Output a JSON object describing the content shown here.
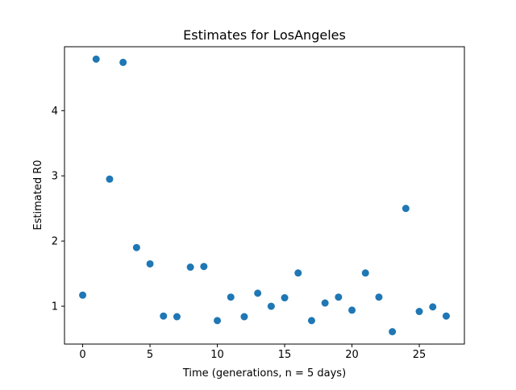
{
  "chart_data": {
    "type": "scatter",
    "title": "Estimates for LosAngeles",
    "xlabel": "Time (generations, n = 5 days)",
    "ylabel": "Estimated R0",
    "xlim": [
      -1.35,
      28.35
    ],
    "ylim": [
      0.42,
      4.98
    ],
    "xticks": [
      0,
      5,
      10,
      15,
      20,
      25
    ],
    "yticks": [
      1,
      2,
      3,
      4
    ],
    "grid": false,
    "marker_color": "#1f77b4",
    "x": [
      0,
      1,
      2,
      3,
      4,
      5,
      6,
      7,
      8,
      9,
      10,
      11,
      12,
      13,
      14,
      15,
      16,
      17,
      18,
      19,
      20,
      21,
      22,
      23,
      24,
      25,
      26,
      27
    ],
    "y": [
      1.17,
      4.79,
      2.95,
      4.74,
      1.9,
      1.65,
      0.85,
      0.84,
      1.6,
      1.61,
      0.78,
      1.14,
      0.84,
      1.2,
      1.0,
      1.13,
      1.51,
      0.78,
      1.05,
      1.14,
      0.94,
      1.51,
      1.14,
      0.61,
      2.5,
      0.92,
      0.99,
      0.85
    ]
  }
}
